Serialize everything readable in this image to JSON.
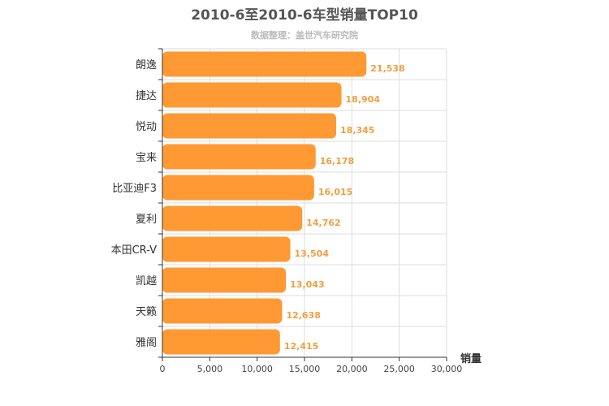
{
  "chart_data": {
    "type": "bar",
    "orientation": "horizontal",
    "title": "2010-6至2010-6车型销量TOP10",
    "subtitle": "数据整理：盖世汽车研究院",
    "xlabel": "销量",
    "categories": [
      "朗逸",
      "捷达",
      "悦动",
      "宝来",
      "比亚迪F3",
      "夏利",
      "本田CR-V",
      "凯越",
      "天籁",
      "雅阁"
    ],
    "values": [
      21538,
      18904,
      18345,
      16178,
      16015,
      14762,
      13504,
      13043,
      12638,
      12415
    ],
    "value_labels": [
      "21,538",
      "18,904",
      "18,345",
      "16,178",
      "16,015",
      "14,762",
      "13,504",
      "13,043",
      "12,638",
      "12,415"
    ],
    "xlim": [
      0,
      30000
    ],
    "xticks": [
      0,
      5000,
      10000,
      15000,
      20000,
      25000,
      30000
    ],
    "xtick_labels": [
      "0",
      "5,000",
      "10,000",
      "15,000",
      "20,000",
      "25,000",
      "30,000"
    ],
    "grid": true,
    "bar_color": "#ff9933",
    "grid_color": "#dddddd"
  }
}
